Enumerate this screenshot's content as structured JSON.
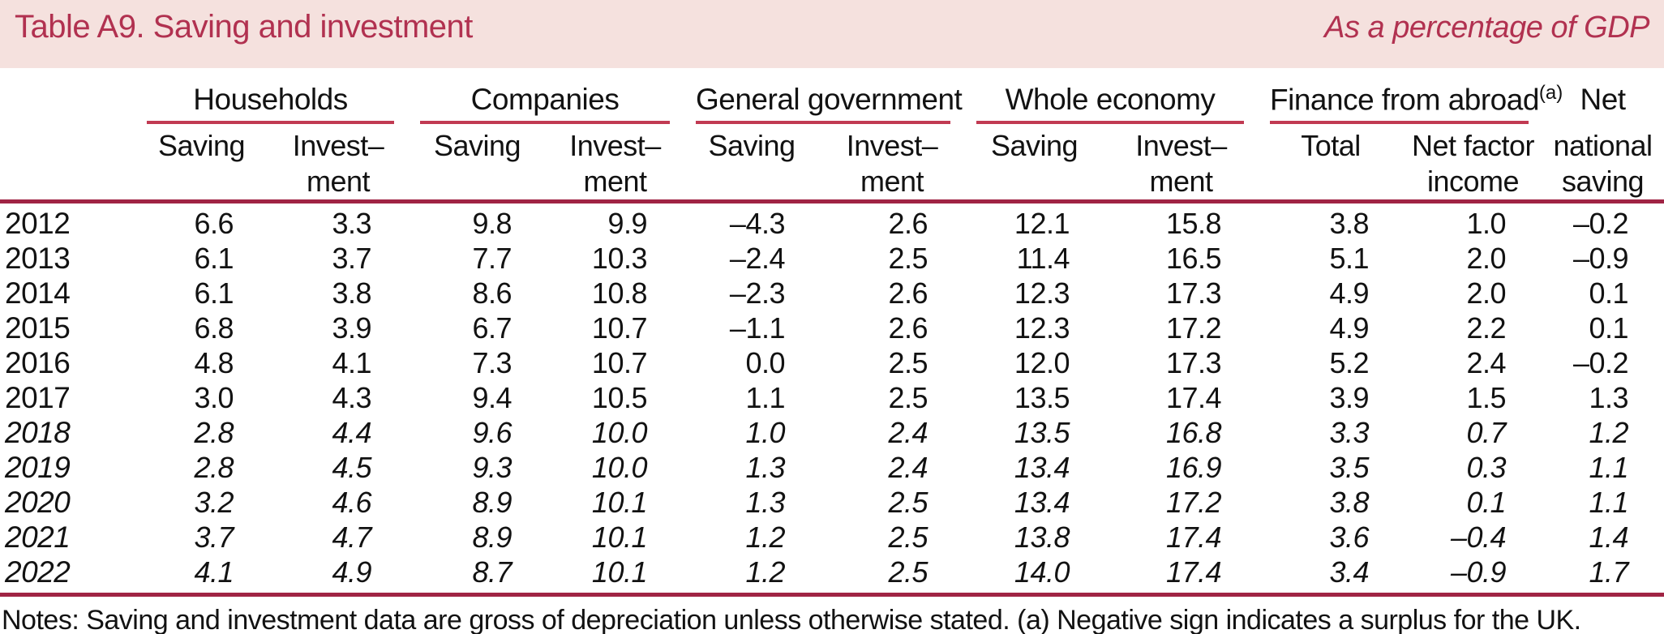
{
  "header": {
    "title": "Table A9. Saving and investment",
    "subtitle": "As a percentage of GDP"
  },
  "table": {
    "groups": [
      {
        "label": "Households"
      },
      {
        "label": "Companies"
      },
      {
        "label": "General government"
      },
      {
        "label": "Whole economy"
      },
      {
        "label": "Finance from abroad",
        "marker": "(a)"
      },
      {
        "label": "Net"
      }
    ],
    "subheaders": [
      {
        "line1": "Saving",
        "line2": ""
      },
      {
        "line1": "Invest–",
        "line2": "ment"
      },
      {
        "line1": "Saving",
        "line2": ""
      },
      {
        "line1": "Invest–",
        "line2": "ment"
      },
      {
        "line1": "Saving",
        "line2": ""
      },
      {
        "line1": "Invest–",
        "line2": "ment"
      },
      {
        "line1": "Saving",
        "line2": ""
      },
      {
        "line1": "Invest–",
        "line2": "ment"
      },
      {
        "line1": "Total",
        "line2": ""
      },
      {
        "line1": "Net factor",
        "line2": "income"
      },
      {
        "line1": "national",
        "line2": "saving"
      }
    ],
    "rows": [
      {
        "year": "2012",
        "forecast": false,
        "values": [
          "6.6",
          "3.3",
          "9.8",
          "9.9",
          "–4.3",
          "2.6",
          "12.1",
          "15.8",
          "3.8",
          "1.0",
          "–0.2"
        ]
      },
      {
        "year": "2013",
        "forecast": false,
        "values": [
          "6.1",
          "3.7",
          "7.7",
          "10.3",
          "–2.4",
          "2.5",
          "11.4",
          "16.5",
          "5.1",
          "2.0",
          "–0.9"
        ]
      },
      {
        "year": "2014",
        "forecast": false,
        "values": [
          "6.1",
          "3.8",
          "8.6",
          "10.8",
          "–2.3",
          "2.6",
          "12.3",
          "17.3",
          "4.9",
          "2.0",
          "0.1"
        ]
      },
      {
        "year": "2015",
        "forecast": false,
        "values": [
          "6.8",
          "3.9",
          "6.7",
          "10.7",
          "–1.1",
          "2.6",
          "12.3",
          "17.2",
          "4.9",
          "2.2",
          "0.1"
        ]
      },
      {
        "year": "2016",
        "forecast": false,
        "values": [
          "4.8",
          "4.1",
          "7.3",
          "10.7",
          "0.0",
          "2.5",
          "12.0",
          "17.3",
          "5.2",
          "2.4",
          "–0.2"
        ]
      },
      {
        "year": "2017",
        "forecast": false,
        "values": [
          "3.0",
          "4.3",
          "9.4",
          "10.5",
          "1.1",
          "2.5",
          "13.5",
          "17.4",
          "3.9",
          "1.5",
          "1.3"
        ]
      },
      {
        "year": "2018",
        "forecast": true,
        "values": [
          "2.8",
          "4.4",
          "9.6",
          "10.0",
          "1.0",
          "2.4",
          "13.5",
          "16.8",
          "3.3",
          "0.7",
          "1.2"
        ]
      },
      {
        "year": "2019",
        "forecast": true,
        "values": [
          "2.8",
          "4.5",
          "9.3",
          "10.0",
          "1.3",
          "2.4",
          "13.4",
          "16.9",
          "3.5",
          "0.3",
          "1.1"
        ]
      },
      {
        "year": "2020",
        "forecast": true,
        "values": [
          "3.2",
          "4.6",
          "8.9",
          "10.1",
          "1.3",
          "2.5",
          "13.4",
          "17.2",
          "3.8",
          "0.1",
          "1.1"
        ]
      },
      {
        "year": "2021",
        "forecast": true,
        "values": [
          "3.7",
          "4.7",
          "8.9",
          "10.1",
          "1.2",
          "2.5",
          "13.8",
          "17.4",
          "3.6",
          "–0.4",
          "1.4"
        ]
      },
      {
        "year": "2022",
        "forecast": true,
        "values": [
          "4.1",
          "4.9",
          "8.7",
          "10.1",
          "1.2",
          "2.5",
          "14.0",
          "17.4",
          "3.4",
          "–0.9",
          "1.7"
        ]
      }
    ]
  },
  "notes": "Notes: Saving and investment data are gross of depreciation unless otherwise stated. (a) Negative sign indicates a surplus for the UK.",
  "colors": {
    "band_background": "#f5e1de",
    "accent_crimson": "#b13150",
    "rule_thin": "#c13a52",
    "rule_thick": "#a02444"
  }
}
